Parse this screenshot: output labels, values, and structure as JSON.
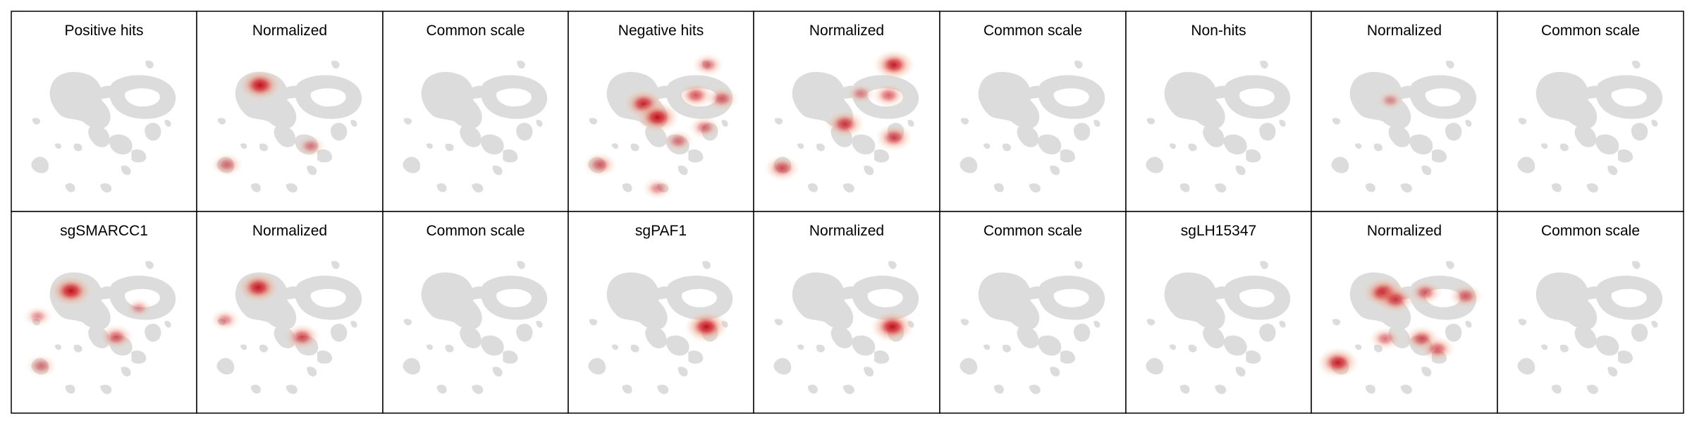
{
  "chart_data": {
    "type": "heatmap",
    "description_note": "",
    "colors": {
      "background": "#ffffff",
      "frame": "#000000",
      "umap_gray": "#dcdcdc",
      "density_high": "#c0121f",
      "density_mid": "#e8836b",
      "density_low": "#f3d2c0"
    },
    "panels": [
      {
        "title": "Positive hits",
        "row": 0,
        "col": 0,
        "mode": "raw",
        "hotspots": []
      },
      {
        "title": "Normalized",
        "row": 0,
        "col": 1,
        "mode": "normalized",
        "hotspots": [
          {
            "x": 0.33,
            "y": 0.27,
            "intensity": 1.0
          },
          {
            "x": 0.14,
            "y": 0.74,
            "intensity": 0.35
          },
          {
            "x": 0.62,
            "y": 0.63,
            "intensity": 0.25
          }
        ]
      },
      {
        "title": "Common scale",
        "row": 0,
        "col": 2,
        "mode": "common",
        "hotspots": []
      },
      {
        "title": "Negative hits",
        "row": 0,
        "col": 3,
        "mode": "raw",
        "hotspots": [
          {
            "x": 0.4,
            "y": 0.38,
            "intensity": 0.85
          },
          {
            "x": 0.48,
            "y": 0.46,
            "intensity": 1.0
          },
          {
            "x": 0.7,
            "y": 0.33,
            "intensity": 0.55
          },
          {
            "x": 0.85,
            "y": 0.35,
            "intensity": 0.45
          },
          {
            "x": 0.75,
            "y": 0.52,
            "intensity": 0.35
          },
          {
            "x": 0.6,
            "y": 0.6,
            "intensity": 0.3
          },
          {
            "x": 0.15,
            "y": 0.74,
            "intensity": 0.45
          },
          {
            "x": 0.48,
            "y": 0.88,
            "intensity": 0.25
          },
          {
            "x": 0.77,
            "y": 0.15,
            "intensity": 0.35
          }
        ]
      },
      {
        "title": "Normalized",
        "row": 0,
        "col": 4,
        "mode": "normalized",
        "hotspots": [
          {
            "x": 0.77,
            "y": 0.15,
            "intensity": 0.9
          },
          {
            "x": 0.49,
            "y": 0.5,
            "intensity": 0.75
          },
          {
            "x": 0.74,
            "y": 0.33,
            "intensity": 0.45
          },
          {
            "x": 0.77,
            "y": 0.58,
            "intensity": 0.65
          },
          {
            "x": 0.13,
            "y": 0.76,
            "intensity": 0.55
          },
          {
            "x": 0.58,
            "y": 0.32,
            "intensity": 0.2
          }
        ]
      },
      {
        "title": "Common scale",
        "row": 0,
        "col": 5,
        "mode": "common",
        "hotspots": []
      },
      {
        "title": "Non-hits",
        "row": 0,
        "col": 6,
        "mode": "raw",
        "hotspots": []
      },
      {
        "title": "Normalized",
        "row": 0,
        "col": 7,
        "mode": "normalized",
        "hotspots": [
          {
            "x": 0.42,
            "y": 0.36,
            "intensity": 0.12
          }
        ]
      },
      {
        "title": "Common scale",
        "row": 0,
        "col": 8,
        "mode": "common",
        "hotspots": []
      },
      {
        "title": "sgSMARCC1",
        "row": 1,
        "col": 0,
        "mode": "raw",
        "hotspots": [
          {
            "x": 0.31,
            "y": 0.3,
            "intensity": 1.0
          },
          {
            "x": 0.57,
            "y": 0.57,
            "intensity": 0.5
          },
          {
            "x": 0.14,
            "y": 0.74,
            "intensity": 0.3
          },
          {
            "x": 0.12,
            "y": 0.45,
            "intensity": 0.2
          },
          {
            "x": 0.7,
            "y": 0.4,
            "intensity": 0.1
          }
        ]
      },
      {
        "title": "Normalized",
        "row": 1,
        "col": 1,
        "mode": "normalized",
        "hotspots": [
          {
            "x": 0.32,
            "y": 0.28,
            "intensity": 0.95
          },
          {
            "x": 0.57,
            "y": 0.57,
            "intensity": 0.6
          },
          {
            "x": 0.13,
            "y": 0.47,
            "intensity": 0.25
          }
        ]
      },
      {
        "title": "Common scale",
        "row": 1,
        "col": 2,
        "mode": "common",
        "hotspots": []
      },
      {
        "title": "sgPAF1",
        "row": 1,
        "col": 3,
        "mode": "raw",
        "hotspots": [
          {
            "x": 0.76,
            "y": 0.51,
            "intensity": 1.0
          }
        ]
      },
      {
        "title": "Normalized",
        "row": 1,
        "col": 4,
        "mode": "normalized",
        "hotspots": [
          {
            "x": 0.76,
            "y": 0.51,
            "intensity": 1.0
          }
        ]
      },
      {
        "title": "Common scale",
        "row": 1,
        "col": 5,
        "mode": "common",
        "hotspots": []
      },
      {
        "title": "sgLH15347",
        "row": 1,
        "col": 6,
        "mode": "raw",
        "hotspots": []
      },
      {
        "title": "Normalized",
        "row": 1,
        "col": 7,
        "mode": "normalized",
        "hotspots": [
          {
            "x": 0.38,
            "y": 0.31,
            "intensity": 0.95
          },
          {
            "x": 0.45,
            "y": 0.35,
            "intensity": 0.7
          },
          {
            "x": 0.62,
            "y": 0.31,
            "intensity": 0.45
          },
          {
            "x": 0.85,
            "y": 0.33,
            "intensity": 0.45
          },
          {
            "x": 0.12,
            "y": 0.72,
            "intensity": 0.9
          },
          {
            "x": 0.6,
            "y": 0.58,
            "intensity": 0.55
          },
          {
            "x": 0.69,
            "y": 0.64,
            "intensity": 0.5
          },
          {
            "x": 0.39,
            "y": 0.58,
            "intensity": 0.35
          }
        ]
      },
      {
        "title": "Common scale",
        "row": 1,
        "col": 8,
        "mode": "common",
        "hotspots": []
      }
    ]
  }
}
